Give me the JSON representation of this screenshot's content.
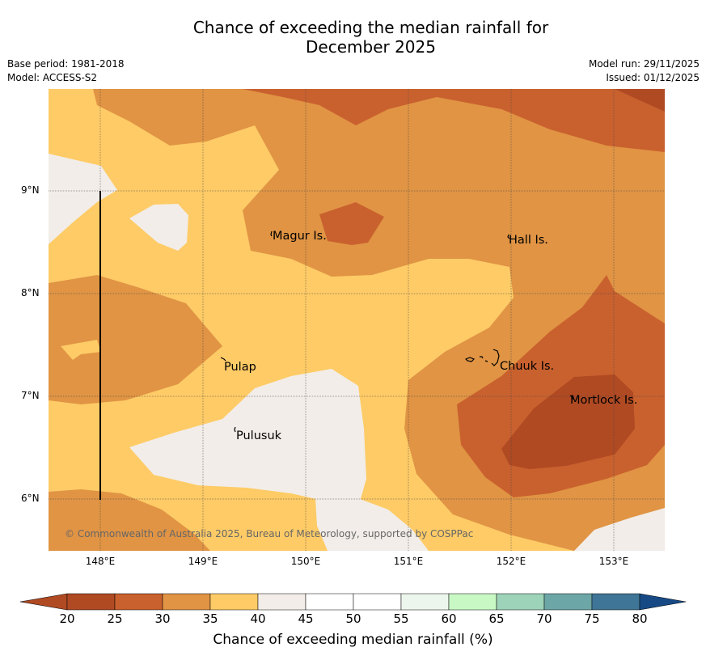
{
  "header": {
    "title_line1": "Chance of exceeding the median rainfall for",
    "title_line2": "December 2025",
    "base_period": "Base period: 1981-2018",
    "model": "Model: ACCESS-S2",
    "model_run": "Model run: 29/11/2025",
    "issued": "Issued: 01/12/2025"
  },
  "map": {
    "lat_labels": [
      "9°N",
      "8°N",
      "7°N",
      "6°N"
    ],
    "lon_labels": [
      "148°E",
      "149°E",
      "150°E",
      "151°E",
      "152°E",
      "153°E"
    ],
    "places": [
      "Magur Is.",
      "Hall Is.",
      "Pulap",
      "Chuuk Is.",
      "Mortlock Is.",
      "Pulusuk"
    ],
    "copyright": "© Commonwealth of Australia 2025, Bureau of Meteorology, supported by COSPPac",
    "colors": {
      "c20": "#b04a23",
      "c25": "#c9612e",
      "c30": "#e09444",
      "c35": "#fecb66",
      "c40": "#f2ede8",
      "c45": "#ffffff",
      "c50": "#ffffff",
      "c55": "#edf6ec",
      "c60": "#c8f9c4",
      "c65": "#9dd3b8",
      "c70": "#6ca6a7",
      "c75": "#3f7596",
      "c80": "#174a85"
    }
  },
  "colorbar": {
    "ticks": [
      "20",
      "25",
      "30",
      "35",
      "40",
      "45",
      "50",
      "55",
      "60",
      "65",
      "70",
      "75",
      "80"
    ],
    "label": "Chance of exceeding median rainfall (%)"
  }
}
